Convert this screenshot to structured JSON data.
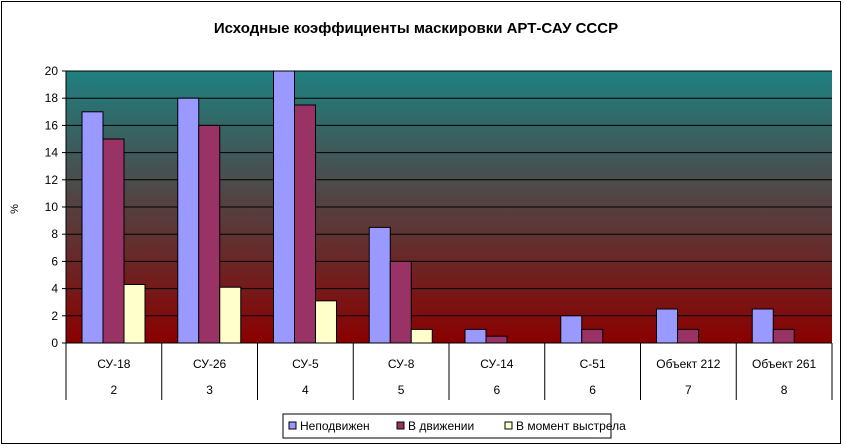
{
  "chart_data": {
    "type": "bar",
    "title": "Исходные коэффициенты маскировки АРТ-САУ СССР",
    "xlabel": "",
    "ylabel": "%",
    "ylim": [
      0,
      20
    ],
    "yticks": [
      "0",
      "2",
      "4",
      "6",
      "8",
      "10",
      "12",
      "14",
      "16",
      "18",
      "20"
    ],
    "grid": true,
    "legend_position": "bottom",
    "categories": [
      "СУ-18",
      "СУ-26",
      "СУ-5",
      "СУ-8",
      "СУ-14",
      "С-51",
      "Объект 212",
      "Объект 261"
    ],
    "category_sublabels": [
      "2",
      "3",
      "4",
      "5",
      "6",
      "6",
      "7",
      "8"
    ],
    "series": [
      {
        "name": "Неподвижен",
        "color": "#9999ff",
        "values": [
          17,
          18,
          20,
          8.5,
          1,
          2,
          2.5,
          2.5
        ]
      },
      {
        "name": "В движении",
        "color": "#993366",
        "values": [
          15,
          16,
          17.5,
          6,
          0.5,
          1,
          1,
          1
        ]
      },
      {
        "name": "В момент выстрела",
        "color": "#ffffcc",
        "values": [
          4.3,
          4.1,
          3.1,
          1,
          0,
          0,
          0,
          0
        ]
      }
    ],
    "plot_background": {
      "top": "#1f8080",
      "bottom": "#8b0000"
    }
  }
}
